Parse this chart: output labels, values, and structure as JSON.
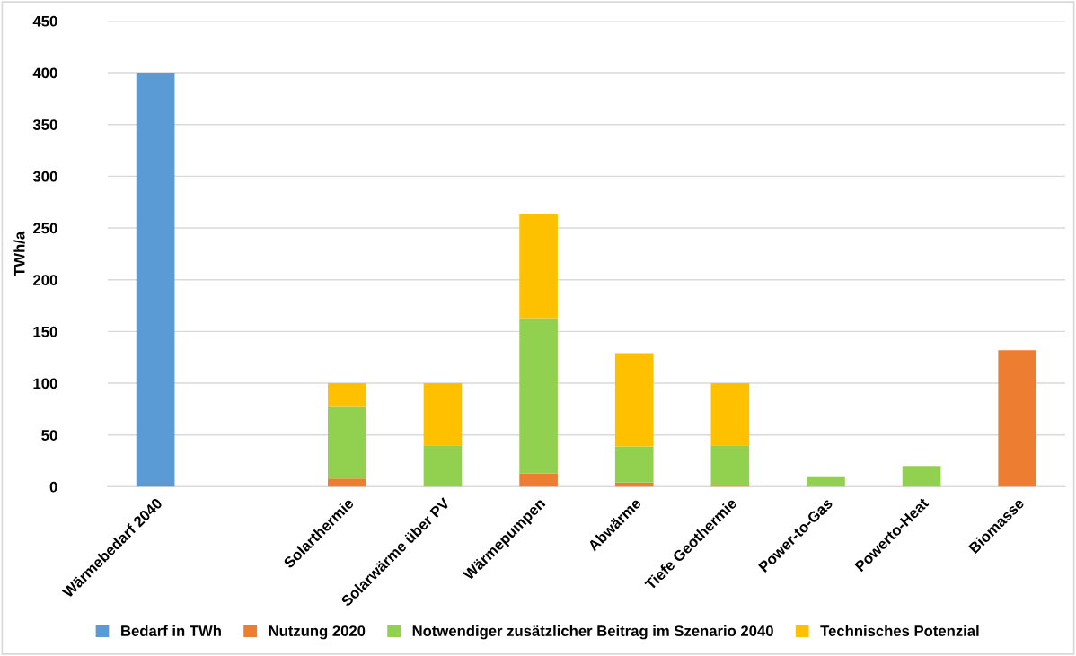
{
  "chart_data": {
    "type": "bar",
    "stacked": true,
    "ylabel": "TWh/a",
    "categories": [
      "Wärmebedarf 2040",
      null,
      "Solarthermie",
      "Solarwärme über PV",
      "Wärmepumpen",
      "Abwärme",
      "Tiefe Geothermie",
      "Power-to-Gas",
      "Powerto-Heat",
      "Biomasse"
    ],
    "series": [
      {
        "name": "Bedarf in TWh",
        "color": "#5b9bd5",
        "values": [
          400,
          null,
          null,
          null,
          null,
          null,
          null,
          null,
          null,
          null
        ]
      },
      {
        "name": "Nutzung 2020",
        "color": "#ed7d31",
        "values": [
          null,
          null,
          8,
          0,
          13,
          4,
          1,
          0,
          0,
          132
        ]
      },
      {
        "name": "Notwendiger zusätzlicher Beitrag im Szenario 2040",
        "color": "#92d050",
        "values": [
          null,
          null,
          70,
          40,
          150,
          35,
          39,
          10,
          20,
          null
        ]
      },
      {
        "name": "Technisches Potenzial",
        "color": "#ffc000",
        "values": [
          null,
          null,
          22,
          60,
          100,
          90,
          60,
          null,
          null,
          null
        ]
      }
    ],
    "ylim": [
      0,
      450
    ],
    "yticks": [
      0,
      50,
      100,
      150,
      200,
      250,
      300,
      350,
      400,
      450
    ],
    "grid": "y",
    "legend": "bottom"
  }
}
